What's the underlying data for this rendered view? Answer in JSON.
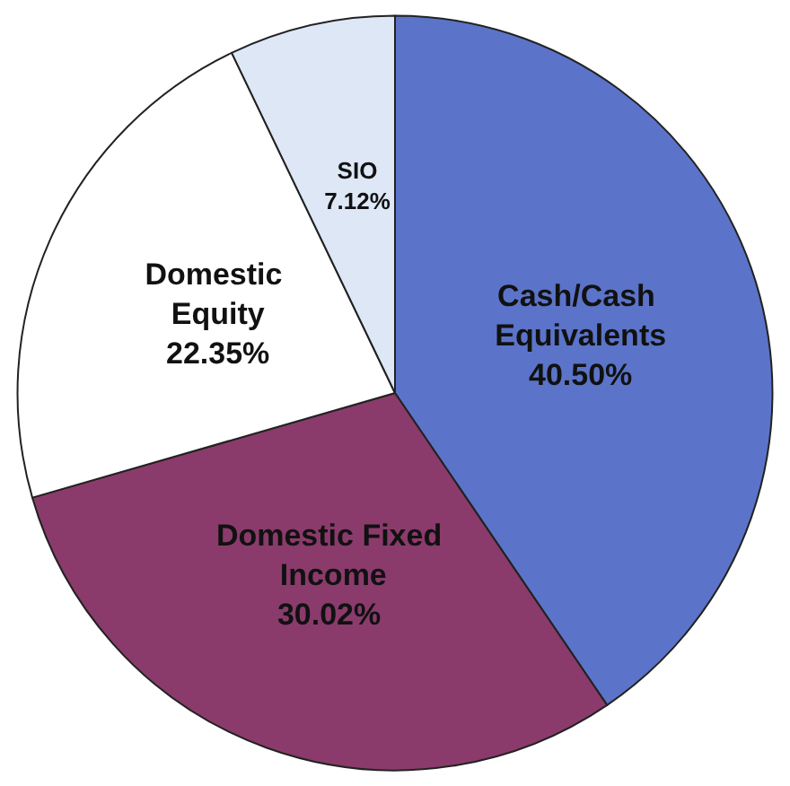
{
  "chart_data": {
    "type": "pie",
    "categories": [
      "Cash/Cash Equivalents",
      "Domestic Fixed Income",
      "Domestic Equity",
      "SIO"
    ],
    "values": [
      40.5,
      30.02,
      22.35,
      7.12
    ],
    "colors": [
      "#5b74c9",
      "#8a3b6b",
      "#ffffff",
      "#dde7f6"
    ],
    "value_labels": [
      "40.50%",
      "30.02%",
      "22.35%",
      "7.12%"
    ],
    "legend": false
  }
}
